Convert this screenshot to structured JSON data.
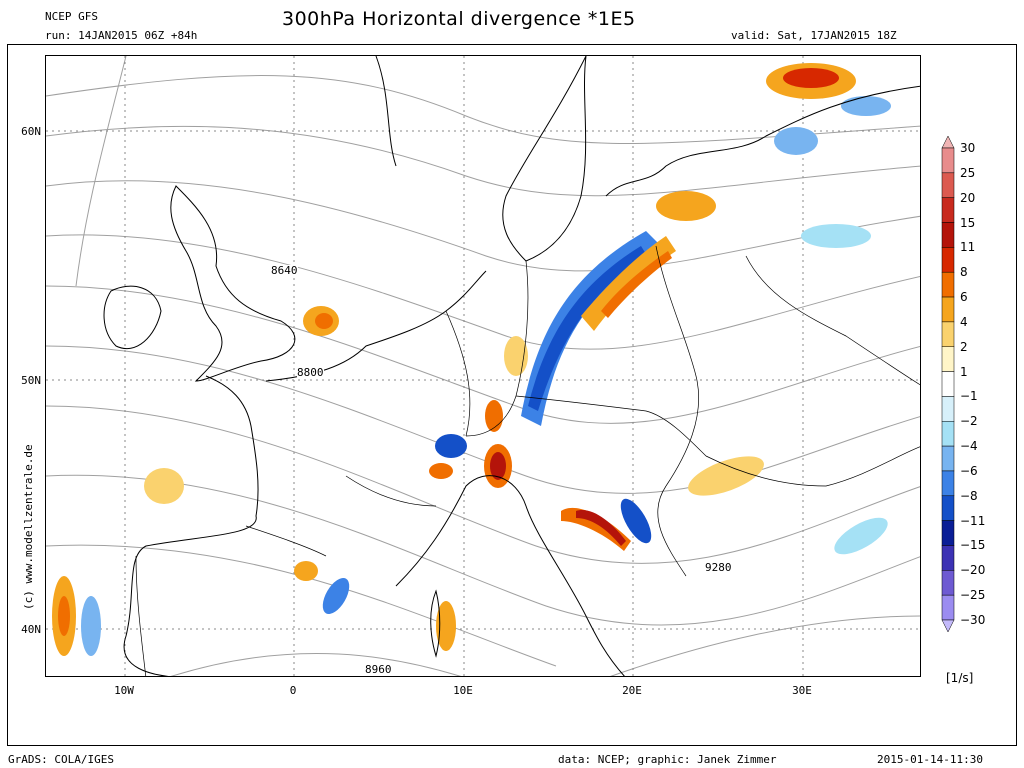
{
  "header": {
    "model": "NCEP GFS",
    "run": "run: 14JAN2015 06Z +84h",
    "title": "300hPa Horizontal divergence *1E5",
    "valid": "valid: Sat, 17JAN2015 18Z"
  },
  "footer": {
    "software": "GrADS: COLA/IGES",
    "source": "data: NCEP; graphic: Janek Zimmer",
    "timestamp": "2015-01-14-11:30"
  },
  "credit": "(c) www.modellzentrale.de",
  "axes": {
    "latitude_labels": [
      "60N",
      "50N",
      "40N"
    ],
    "longitude_labels": [
      "10W",
      "0",
      "10E",
      "20E",
      "30E"
    ]
  },
  "contour_labels": [
    "8640",
    "8800",
    "8960",
    "9280"
  ],
  "colorbar": {
    "units": "[1/s]",
    "levels": [
      "30",
      "25",
      "20",
      "15",
      "11",
      "8",
      "6",
      "4",
      "2",
      "1",
      "−1",
      "−2",
      "−4",
      "−6",
      "−8",
      "−11",
      "−15",
      "−20",
      "−25",
      "−30"
    ],
    "colors": [
      "#f0b4b4",
      "#e88c8c",
      "#dc5a50",
      "#c82a1e",
      "#b4140a",
      "#d72800",
      "#f06e00",
      "#f5a51e",
      "#fad26e",
      "#fff5c8",
      "#ffffff",
      "#d7f0fa",
      "#a5e1f5",
      "#78b4f0",
      "#3c82e6",
      "#1450c8",
      "#0a1e96",
      "#3c32b4",
      "#6e5ad2",
      "#9b8cf0",
      "#c3b9fa"
    ]
  }
}
